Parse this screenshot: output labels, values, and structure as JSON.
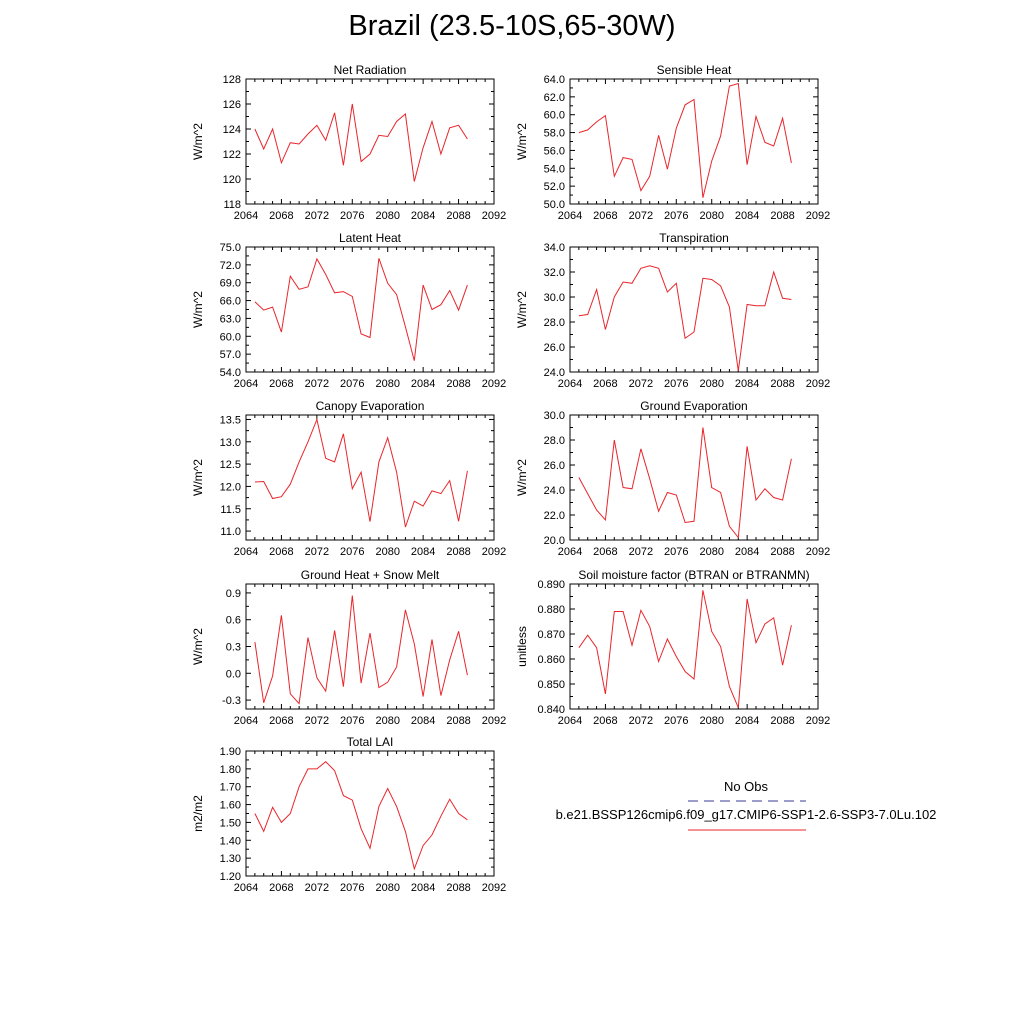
{
  "page_title": "Brazil (23.5-10S,65-30W)",
  "legend": {
    "obs_label": "No Obs",
    "obs_color": "#3b3b9b",
    "obs_style": "dashed",
    "model_label": "b.e21.BSSP126cmip6.f09_g17.CMIP6-SSP1-2.6-SSP3-7.0Lu.102",
    "model_color": "#e8262b",
    "model_style": "solid"
  },
  "chart_data": [
    {
      "type": "line",
      "title": "Net Radiation",
      "ylabel": "W/m^2",
      "xlim": [
        2064,
        2092
      ],
      "xticks": [
        "2064",
        "2068",
        "2072",
        "2076",
        "2080",
        "2084",
        "2088",
        "2092"
      ],
      "ylim": [
        118,
        128
      ],
      "yticks": [
        "118",
        "120",
        "122",
        "124",
        "126",
        "128"
      ],
      "x": [
        2065,
        2066,
        2067,
        2068,
        2069,
        2070,
        2071,
        2072,
        2073,
        2074,
        2075,
        2076,
        2077,
        2078,
        2079,
        2080,
        2081,
        2082,
        2083,
        2084,
        2085,
        2086,
        2087,
        2088,
        2089
      ],
      "series": [
        {
          "values": [
            124.0,
            122.4,
            124.0,
            121.3,
            122.9,
            122.8,
            123.6,
            124.3,
            123.1,
            125.3,
            121.1,
            126.0,
            121.4,
            122.0,
            123.5,
            123.4,
            124.6,
            125.2,
            119.8,
            122.5,
            124.6,
            122.0,
            124.1,
            124.3,
            123.2
          ],
          "color": "#e8262b"
        }
      ]
    },
    {
      "type": "line",
      "title": "Sensible Heat",
      "ylabel": "W/m^2",
      "xlim": [
        2064,
        2092
      ],
      "xticks": [
        "2064",
        "2068",
        "2072",
        "2076",
        "2080",
        "2084",
        "2088",
        "2092"
      ],
      "ylim": [
        50,
        64
      ],
      "yticks": [
        "50.0",
        "52.0",
        "54.0",
        "56.0",
        "58.0",
        "60.0",
        "62.0",
        "64.0"
      ],
      "x": [
        2065,
        2066,
        2067,
        2068,
        2069,
        2070,
        2071,
        2072,
        2073,
        2074,
        2075,
        2076,
        2077,
        2078,
        2079,
        2080,
        2081,
        2082,
        2083,
        2084,
        2085,
        2086,
        2087,
        2088,
        2089
      ],
      "series": [
        {
          "values": [
            58.0,
            58.3,
            59.2,
            59.9,
            53.1,
            55.2,
            55.0,
            51.5,
            53.1,
            57.7,
            53.9,
            58.5,
            61.1,
            61.7,
            50.7,
            54.8,
            57.6,
            63.2,
            63.5,
            54.4,
            59.8,
            56.9,
            56.5,
            59.6,
            54.6
          ],
          "color": "#e8262b"
        }
      ]
    },
    {
      "type": "line",
      "title": "Latent Heat",
      "ylabel": "W/m^2",
      "xlim": [
        2064,
        2092
      ],
      "xticks": [
        "2064",
        "2068",
        "2072",
        "2076",
        "2080",
        "2084",
        "2088",
        "2092"
      ],
      "ylim": [
        54,
        75
      ],
      "yticks": [
        "54.0",
        "57.0",
        "60.0",
        "63.0",
        "66.0",
        "69.0",
        "72.0",
        "75.0"
      ],
      "x": [
        2065,
        2066,
        2067,
        2068,
        2069,
        2070,
        2071,
        2072,
        2073,
        2074,
        2075,
        2076,
        2077,
        2078,
        2079,
        2080,
        2081,
        2082,
        2083,
        2084,
        2085,
        2086,
        2087,
        2088,
        2089
      ],
      "series": [
        {
          "values": [
            65.8,
            64.4,
            64.9,
            60.7,
            70.1,
            67.9,
            68.3,
            73.0,
            70.4,
            67.3,
            67.5,
            66.7,
            60.4,
            59.8,
            73.1,
            68.9,
            67.0,
            61.6,
            55.9,
            68.6,
            64.5,
            65.3,
            67.7,
            64.4,
            68.6
          ],
          "color": "#e8262b"
        }
      ]
    },
    {
      "type": "line",
      "title": "Transpiration",
      "ylabel": "W/m^2",
      "xlim": [
        2064,
        2092
      ],
      "xticks": [
        "2064",
        "2068",
        "2072",
        "2076",
        "2080",
        "2084",
        "2088",
        "2092"
      ],
      "ylim": [
        24,
        34
      ],
      "yticks": [
        "24.0",
        "26.0",
        "28.0",
        "30.0",
        "32.0",
        "34.0"
      ],
      "x": [
        2065,
        2066,
        2067,
        2068,
        2069,
        2070,
        2071,
        2072,
        2073,
        2074,
        2075,
        2076,
        2077,
        2078,
        2079,
        2080,
        2081,
        2082,
        2083,
        2084,
        2085,
        2086,
        2087,
        2088,
        2089
      ],
      "series": [
        {
          "values": [
            28.5,
            28.6,
            30.6,
            27.4,
            30.0,
            31.2,
            31.1,
            32.3,
            32.5,
            32.3,
            30.4,
            31.1,
            26.7,
            27.2,
            31.5,
            31.4,
            30.9,
            29.2,
            24.1,
            29.4,
            29.3,
            29.3,
            32.0,
            29.9,
            29.8
          ],
          "color": "#e8262b"
        }
      ]
    },
    {
      "type": "line",
      "title": "Canopy Evaporation",
      "ylabel": "W/m^2",
      "xlim": [
        2064,
        2092
      ],
      "xticks": [
        "2064",
        "2068",
        "2072",
        "2076",
        "2080",
        "2084",
        "2088",
        "2092"
      ],
      "ylim": [
        10.8,
        13.6
      ],
      "yticks": [
        "11.0",
        "11.5",
        "12.0",
        "12.5",
        "13.0",
        "13.5"
      ],
      "x": [
        2065,
        2066,
        2067,
        2068,
        2069,
        2070,
        2071,
        2072,
        2073,
        2074,
        2075,
        2076,
        2077,
        2078,
        2079,
        2080,
        2081,
        2082,
        2083,
        2084,
        2085,
        2086,
        2087,
        2088,
        2089
      ],
      "series": [
        {
          "values": [
            12.1,
            12.11,
            11.73,
            11.77,
            12.05,
            12.55,
            13.0,
            13.5,
            12.63,
            12.55,
            13.18,
            11.95,
            12.32,
            11.21,
            12.55,
            13.09,
            12.32,
            11.09,
            11.67,
            11.56,
            11.9,
            11.84,
            12.13,
            11.22,
            12.35
          ],
          "color": "#e8262b"
        }
      ]
    },
    {
      "type": "line",
      "title": "Ground Evaporation",
      "ylabel": "W/m^2",
      "xlim": [
        2064,
        2092
      ],
      "xticks": [
        "2064",
        "2068",
        "2072",
        "2076",
        "2080",
        "2084",
        "2088",
        "2092"
      ],
      "ylim": [
        20,
        30
      ],
      "yticks": [
        "20.0",
        "22.0",
        "24.0",
        "26.0",
        "28.0",
        "30.0"
      ],
      "x": [
        2065,
        2066,
        2067,
        2068,
        2069,
        2070,
        2071,
        2072,
        2073,
        2074,
        2075,
        2076,
        2077,
        2078,
        2079,
        2080,
        2081,
        2082,
        2083,
        2084,
        2085,
        2086,
        2087,
        2088,
        2089
      ],
      "series": [
        {
          "values": [
            25.0,
            23.7,
            22.4,
            21.6,
            28.0,
            24.2,
            24.1,
            27.3,
            24.9,
            22.3,
            23.8,
            23.6,
            21.4,
            21.5,
            29.0,
            24.2,
            23.8,
            21.1,
            20.2,
            27.5,
            23.2,
            24.1,
            23.4,
            23.2,
            26.5
          ],
          "color": "#e8262b"
        }
      ]
    },
    {
      "type": "line",
      "title": "Ground Heat + Snow Melt",
      "ylabel": "W/m^2",
      "xlim": [
        2064,
        2092
      ],
      "xticks": [
        "2064",
        "2068",
        "2072",
        "2076",
        "2080",
        "2084",
        "2088",
        "2092"
      ],
      "ylim": [
        -0.4,
        1.0
      ],
      "yticks": [
        "-0.3",
        "0.0",
        "0.3",
        "0.6",
        "0.9"
      ],
      "x": [
        2065,
        2066,
        2067,
        2068,
        2069,
        2070,
        2071,
        2072,
        2073,
        2074,
        2075,
        2076,
        2077,
        2078,
        2079,
        2080,
        2081,
        2082,
        2083,
        2084,
        2085,
        2086,
        2087,
        2088,
        2089
      ],
      "series": [
        {
          "values": [
            0.35,
            -0.33,
            -0.03,
            0.65,
            -0.23,
            -0.34,
            0.4,
            -0.05,
            -0.2,
            0.48,
            -0.15,
            0.87,
            -0.11,
            0.45,
            -0.16,
            -0.1,
            0.07,
            0.71,
            0.33,
            -0.26,
            0.38,
            -0.25,
            0.15,
            0.47,
            -0.02
          ],
          "color": "#e8262b"
        }
      ]
    },
    {
      "type": "line",
      "title": "Soil moisture factor (BTRAN or BTRANMN)",
      "ylabel": "unitless",
      "xlim": [
        2064,
        2092
      ],
      "xticks": [
        "2064",
        "2068",
        "2072",
        "2076",
        "2080",
        "2084",
        "2088",
        "2092"
      ],
      "ylim": [
        0.84,
        0.89
      ],
      "yticks": [
        "0.840",
        "0.850",
        "0.860",
        "0.870",
        "0.880",
        "0.890"
      ],
      "x": [
        2065,
        2066,
        2067,
        2068,
        2069,
        2070,
        2071,
        2072,
        2073,
        2074,
        2075,
        2076,
        2077,
        2078,
        2079,
        2080,
        2081,
        2082,
        2083,
        2084,
        2085,
        2086,
        2087,
        2088,
        2089
      ],
      "series": [
        {
          "values": [
            0.8645,
            0.8695,
            0.8645,
            0.846,
            0.879,
            0.879,
            0.8655,
            0.8795,
            0.873,
            0.859,
            0.868,
            0.861,
            0.855,
            0.852,
            0.8875,
            0.871,
            0.865,
            0.849,
            0.8405,
            0.884,
            0.8665,
            0.874,
            0.8765,
            0.8575,
            0.8735
          ],
          "color": "#e8262b"
        }
      ]
    },
    {
      "type": "line",
      "title": "Total LAI",
      "ylabel": "m2/m2",
      "xlim": [
        2064,
        2092
      ],
      "xticks": [
        "2064",
        "2068",
        "2072",
        "2076",
        "2080",
        "2084",
        "2088",
        "2092"
      ],
      "ylim": [
        1.2,
        1.9
      ],
      "yticks": [
        "1.20",
        "1.30",
        "1.40",
        "1.50",
        "1.60",
        "1.70",
        "1.80",
        "1.90"
      ],
      "x": [
        2065,
        2066,
        2067,
        2068,
        2069,
        2070,
        2071,
        2072,
        2073,
        2074,
        2075,
        2076,
        2077,
        2078,
        2079,
        2080,
        2081,
        2082,
        2083,
        2084,
        2085,
        2086,
        2087,
        2088,
        2089
      ],
      "series": [
        {
          "values": [
            1.55,
            1.45,
            1.585,
            1.5,
            1.55,
            1.7,
            1.8,
            1.8,
            1.84,
            1.79,
            1.65,
            1.625,
            1.465,
            1.355,
            1.59,
            1.69,
            1.59,
            1.45,
            1.24,
            1.37,
            1.43,
            1.535,
            1.63,
            1.55,
            1.515
          ],
          "color": "#e8262b"
        }
      ]
    }
  ]
}
